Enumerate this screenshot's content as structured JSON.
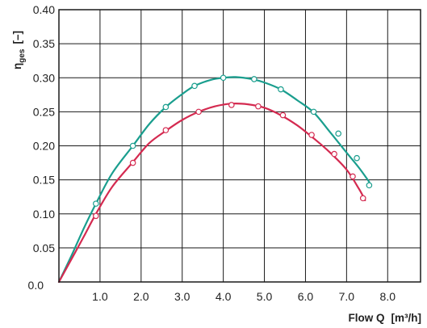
{
  "chart_data": {
    "type": "line",
    "title": "",
    "xlabel": {
      "main": "Flow Q",
      "unit": "[m³/h]"
    },
    "ylabel": {
      "main": "η",
      "sub": "ges",
      "unit": "[–]"
    },
    "xlim": [
      0,
      8.8
    ],
    "ylim": [
      0,
      0.4
    ],
    "x_ticks": [
      {
        "value": 1,
        "label": "1.0"
      },
      {
        "value": 2,
        "label": "2.0"
      },
      {
        "value": 3,
        "label": "3.0"
      },
      {
        "value": 4,
        "label": "4.0"
      },
      {
        "value": 5,
        "label": "5.0"
      },
      {
        "value": 6,
        "label": "6.0"
      },
      {
        "value": 7,
        "label": "7.0"
      },
      {
        "value": 8,
        "label": "8.0"
      }
    ],
    "x_origin_label": "0.0",
    "y_ticks": [
      {
        "value": 0.05,
        "label": "0.05"
      },
      {
        "value": 0.1,
        "label": "0.10"
      },
      {
        "value": 0.15,
        "label": "0.15"
      },
      {
        "value": 0.2,
        "label": "0.20"
      },
      {
        "value": 0.25,
        "label": "0.25"
      },
      {
        "value": 0.3,
        "label": "0.30"
      },
      {
        "value": 0.35,
        "label": "0.35"
      },
      {
        "value": 0.4,
        "label": "0.40"
      }
    ],
    "grid": true,
    "series": [
      {
        "color": "#1a9e8e",
        "curve": [
          [
            0,
            0
          ],
          [
            0.3,
            0.038
          ],
          [
            0.6,
            0.078
          ],
          [
            0.9,
            0.115
          ],
          [
            1.3,
            0.16
          ],
          [
            1.8,
            0.2
          ],
          [
            2.2,
            0.232
          ],
          [
            2.6,
            0.257
          ],
          [
            3.0,
            0.276
          ],
          [
            3.3,
            0.288
          ],
          [
            3.7,
            0.297
          ],
          [
            4.0,
            0.3
          ],
          [
            4.3,
            0.301
          ],
          [
            4.7,
            0.298
          ],
          [
            5.0,
            0.293
          ],
          [
            5.4,
            0.283
          ],
          [
            5.8,
            0.267
          ],
          [
            6.2,
            0.249
          ],
          [
            6.6,
            0.22
          ],
          [
            7.0,
            0.19
          ],
          [
            7.3,
            0.168
          ],
          [
            7.55,
            0.147
          ]
        ],
        "markers": [
          [
            0.9,
            0.115
          ],
          [
            1.8,
            0.2
          ],
          [
            2.6,
            0.257
          ],
          [
            3.3,
            0.288
          ],
          [
            4.0,
            0.3
          ],
          [
            4.75,
            0.298
          ],
          [
            5.4,
            0.283
          ],
          [
            6.2,
            0.25
          ],
          [
            6.8,
            0.218
          ],
          [
            7.25,
            0.182
          ],
          [
            7.55,
            0.142
          ]
        ]
      },
      {
        "color": "#d42a50",
        "curve": [
          [
            0,
            0
          ],
          [
            0.3,
            0.033
          ],
          [
            0.6,
            0.066
          ],
          [
            0.9,
            0.1
          ],
          [
            1.3,
            0.14
          ],
          [
            1.8,
            0.176
          ],
          [
            2.2,
            0.204
          ],
          [
            2.6,
            0.222
          ],
          [
            3.0,
            0.238
          ],
          [
            3.4,
            0.25
          ],
          [
            3.8,
            0.258
          ],
          [
            4.2,
            0.262
          ],
          [
            4.6,
            0.261
          ],
          [
            5.0,
            0.256
          ],
          [
            5.4,
            0.245
          ],
          [
            5.8,
            0.23
          ],
          [
            6.2,
            0.211
          ],
          [
            6.6,
            0.19
          ],
          [
            7.0,
            0.165
          ],
          [
            7.3,
            0.137
          ],
          [
            7.45,
            0.12
          ]
        ],
        "markers": [
          [
            0.9,
            0.097
          ],
          [
            1.8,
            0.175
          ],
          [
            2.6,
            0.223
          ],
          [
            3.4,
            0.25
          ],
          [
            4.2,
            0.26
          ],
          [
            4.85,
            0.258
          ],
          [
            5.45,
            0.245
          ],
          [
            6.15,
            0.216
          ],
          [
            6.7,
            0.188
          ],
          [
            7.15,
            0.155
          ],
          [
            7.4,
            0.123
          ]
        ]
      }
    ]
  }
}
